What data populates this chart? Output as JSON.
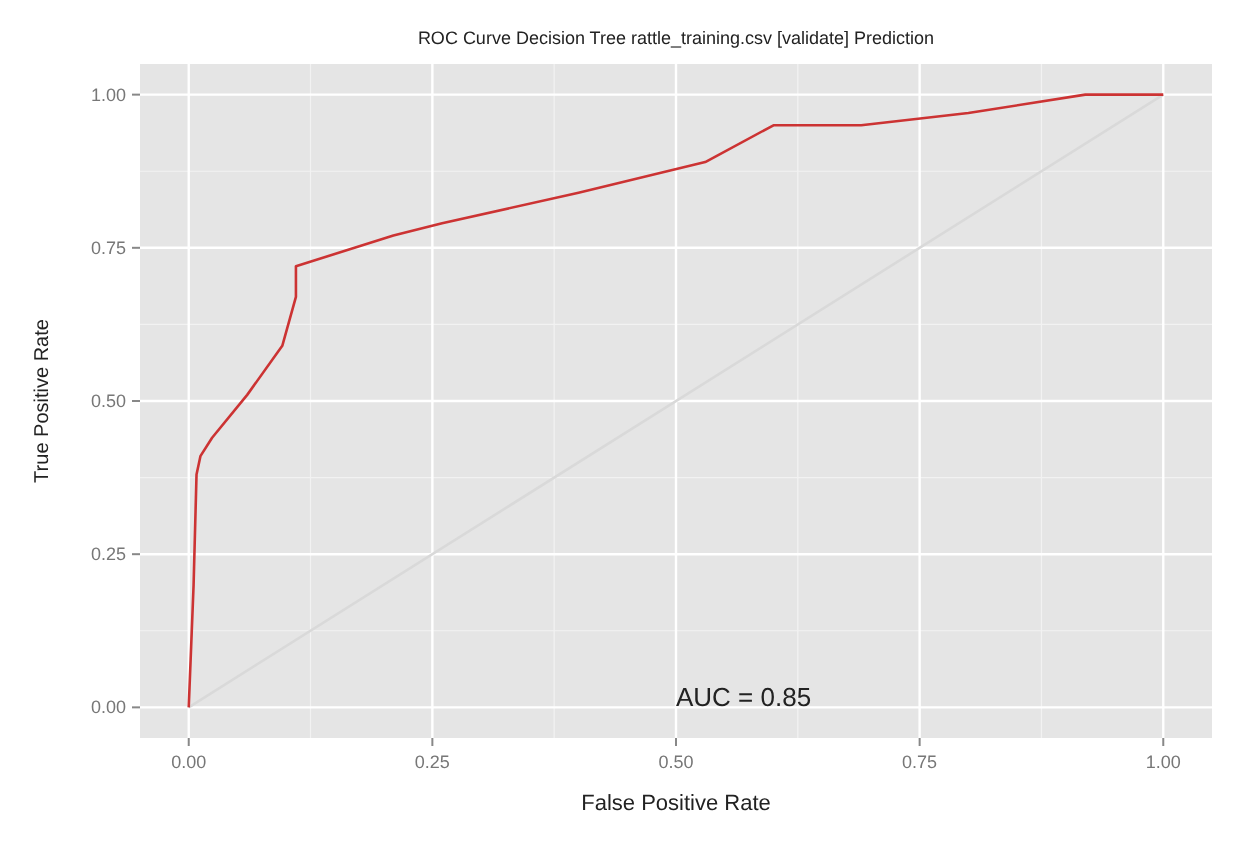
{
  "chart_data": {
    "type": "line",
    "title": "ROC Curve Decision Tree rattle_training.csv [validate] Prediction",
    "xlabel": "False Positive Rate",
    "ylabel": "True Positive Rate",
    "xlim": [
      -0.05,
      1.05
    ],
    "ylim": [
      -0.05,
      1.05
    ],
    "xticks": [
      {
        "value": 0,
        "label": "0.00"
      },
      {
        "value": 0.25,
        "label": "0.25"
      },
      {
        "value": 0.5,
        "label": "0.50"
      },
      {
        "value": 0.75,
        "label": "0.75"
      },
      {
        "value": 1,
        "label": "1.00"
      }
    ],
    "yticks": [
      {
        "value": 0,
        "label": "0.00"
      },
      {
        "value": 0.25,
        "label": "0.25"
      },
      {
        "value": 0.5,
        "label": "0.50"
      },
      {
        "value": 0.75,
        "label": "0.75"
      },
      {
        "value": 1,
        "label": "1.00"
      }
    ],
    "grid": true,
    "series": [
      {
        "color": "#d9d9d9",
        "x": [
          0,
          1
        ],
        "values": [
          0,
          1
        ]
      },
      {
        "color": "#cc3333",
        "x": [
          0,
          0.005,
          0.008,
          0.012,
          0.024,
          0.06,
          0.096,
          0.11,
          0.11,
          0.21,
          0.26,
          0.4,
          0.53,
          0.6,
          0.69,
          0.8,
          0.92,
          1.0
        ],
        "values": [
          0,
          0.2,
          0.38,
          0.41,
          0.44,
          0.51,
          0.59,
          0.67,
          0.72,
          0.77,
          0.79,
          0.84,
          0.89,
          0.95,
          0.95,
          0.97,
          1.0,
          1.0
        ]
      }
    ],
    "annotations": [
      "AUC = 0.85"
    ]
  }
}
